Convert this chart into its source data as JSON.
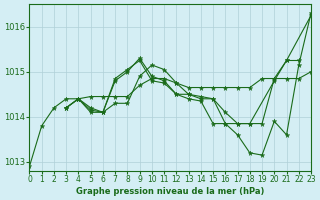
{
  "title": "Graphe pression niveau de la mer (hPa)",
  "background_color": "#d4eef4",
  "grid_color": "#b0d0d8",
  "line_color": "#1a6b1a",
  "xlim": [
    0,
    23
  ],
  "ylim": [
    1012.8,
    1016.5
  ],
  "xticks": [
    0,
    1,
    2,
    3,
    4,
    5,
    6,
    7,
    8,
    9,
    10,
    11,
    12,
    13,
    14,
    15,
    16,
    17,
    18,
    19,
    20,
    21,
    22,
    23
  ],
  "yticks": [
    1013,
    1014,
    1015,
    1016
  ],
  "series": [
    {
      "x": [
        0,
        1,
        2,
        3,
        4,
        5,
        6,
        7,
        8,
        9,
        10,
        11,
        12,
        13,
        14,
        15,
        16,
        17,
        18,
        20,
        21,
        23
      ],
      "y": [
        1012.9,
        1013.8,
        1014.2,
        1014.4,
        1014.4,
        1014.1,
        1014.1,
        1014.8,
        1015.0,
        1015.3,
        1014.9,
        1014.8,
        1014.5,
        1014.5,
        1014.4,
        1014.4,
        1013.85,
        1013.85,
        1013.85,
        1014.8,
        1015.25,
        1016.25
      ]
    },
    {
      "x": [
        3,
        4,
        5,
        6,
        7,
        8,
        9,
        10,
        11,
        12,
        13,
        14,
        15,
        16,
        17,
        18,
        19,
        20,
        21,
        22,
        23
      ],
      "y": [
        1014.2,
        1014.4,
        1014.15,
        1014.1,
        1014.85,
        1015.05,
        1015.25,
        1014.8,
        1014.75,
        1014.5,
        1014.4,
        1014.35,
        1013.85,
        1013.85,
        1013.6,
        1013.2,
        1013.15,
        1013.9,
        1013.6,
        1015.15,
        1016.3
      ]
    },
    {
      "x": [
        3,
        4,
        5,
        6,
        7,
        8,
        9,
        10,
        11,
        12,
        13,
        14,
        15,
        16,
        17,
        18,
        19,
        20,
        21,
        22
      ],
      "y": [
        1014.2,
        1014.4,
        1014.2,
        1014.1,
        1014.3,
        1014.3,
        1014.9,
        1015.15,
        1015.05,
        1014.75,
        1014.5,
        1014.45,
        1014.4,
        1014.1,
        1013.85,
        1013.85,
        1013.85,
        1014.85,
        1015.25,
        1015.25
      ]
    },
    {
      "x": [
        3,
        4,
        5,
        6,
        7,
        8,
        9,
        10,
        11,
        12,
        13,
        14,
        15,
        16,
        17,
        18,
        19,
        20,
        21,
        22,
        23
      ],
      "y": [
        1014.2,
        1014.4,
        1014.45,
        1014.45,
        1014.45,
        1014.45,
        1014.7,
        1014.85,
        1014.85,
        1014.75,
        1014.65,
        1014.65,
        1014.65,
        1014.65,
        1014.65,
        1014.65,
        1014.85,
        1014.85,
        1014.85,
        1014.85,
        1015.0
      ]
    }
  ]
}
